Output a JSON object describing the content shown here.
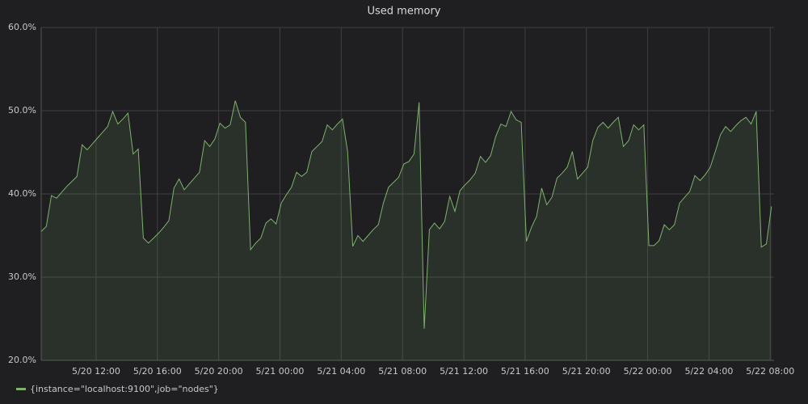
{
  "chart_data": {
    "type": "line",
    "title": "Used memory",
    "x": [
      "5/20 08:25",
      "5/20 08:45",
      "5/20 09:05",
      "5/20 09:25",
      "5/20 09:45",
      "5/20 10:05",
      "5/20 10:25",
      "5/20 10:45",
      "5/20 11:05",
      "5/20 11:25",
      "5/20 11:45",
      "5/20 12:05",
      "5/20 12:25",
      "5/20 12:45",
      "5/20 13:05",
      "5/20 13:25",
      "5/20 13:45",
      "5/20 14:05",
      "5/20 14:25",
      "5/20 14:45",
      "5/20 15:05",
      "5/20 15:25",
      "5/20 15:45",
      "5/20 16:05",
      "5/20 16:25",
      "5/20 16:45",
      "5/20 17:05",
      "5/20 17:25",
      "5/20 17:45",
      "5/20 18:05",
      "5/20 18:25",
      "5/20 18:45",
      "5/20 19:05",
      "5/20 19:25",
      "5/20 19:45",
      "5/20 20:05",
      "5/20 20:25",
      "5/20 20:45",
      "5/20 21:05",
      "5/20 21:25",
      "5/20 21:45",
      "5/20 22:05",
      "5/20 22:25",
      "5/20 22:45",
      "5/20 23:05",
      "5/20 23:25",
      "5/20 23:45",
      "5/21 00:05",
      "5/21 00:25",
      "5/21 00:45",
      "5/21 01:05",
      "5/21 01:25",
      "5/21 01:45",
      "5/21 02:05",
      "5/21 02:25",
      "5/21 02:45",
      "5/21 03:05",
      "5/21 03:25",
      "5/21 03:45",
      "5/21 04:05",
      "5/21 04:25",
      "5/21 04:45",
      "5/21 05:05",
      "5/21 05:25",
      "5/21 05:45",
      "5/21 06:05",
      "5/21 06:25",
      "5/21 06:45",
      "5/21 07:05",
      "5/21 07:25",
      "5/21 07:45",
      "5/21 08:05",
      "5/21 08:25",
      "5/21 08:45",
      "5/21 09:05",
      "5/21 09:25",
      "5/21 09:45",
      "5/21 10:05",
      "5/21 10:25",
      "5/21 10:45",
      "5/21 11:05",
      "5/21 11:25",
      "5/21 11:45",
      "5/21 12:05",
      "5/21 12:25",
      "5/21 12:45",
      "5/21 13:05",
      "5/21 13:25",
      "5/21 13:45",
      "5/21 14:05",
      "5/21 14:25",
      "5/21 14:45",
      "5/21 15:05",
      "5/21 15:25",
      "5/21 15:45",
      "5/21 16:05",
      "5/21 16:25",
      "5/21 16:45",
      "5/21 17:05",
      "5/21 17:25",
      "5/21 17:45",
      "5/21 18:05",
      "5/21 18:25",
      "5/21 18:45",
      "5/21 19:05",
      "5/21 19:25",
      "5/21 19:45",
      "5/21 20:05",
      "5/21 20:25",
      "5/21 20:45",
      "5/21 21:05",
      "5/21 21:25",
      "5/21 21:45",
      "5/21 22:05",
      "5/21 22:25",
      "5/21 22:45",
      "5/21 23:05",
      "5/21 23:25",
      "5/21 23:45",
      "5/22 00:05",
      "5/22 00:25",
      "5/22 00:45",
      "5/22 01:05",
      "5/22 01:25",
      "5/22 01:45",
      "5/22 02:05",
      "5/22 02:25",
      "5/22 02:45",
      "5/22 03:05",
      "5/22 03:25",
      "5/22 03:45",
      "5/22 04:05",
      "5/22 04:25",
      "5/22 04:45",
      "5/22 05:05",
      "5/22 05:25",
      "5/22 05:45",
      "5/22 06:05",
      "5/22 06:25",
      "5/22 06:45",
      "5/22 07:05",
      "5/22 07:25",
      "5/22 07:45",
      "5/22 08:05"
    ],
    "series": [
      {
        "name": "{instance=\"localhost:9100\",job=\"nodes\"}",
        "color": "#7eb26d",
        "values": [
          35.5,
          36.1,
          39.8,
          39.5,
          40.2,
          40.9,
          41.5,
          42.1,
          45.9,
          45.3,
          46.0,
          46.7,
          47.4,
          48.1,
          49.9,
          48.4,
          49.0,
          49.7,
          44.8,
          45.4,
          34.7,
          34.1,
          34.7,
          35.3,
          36.0,
          36.8,
          40.7,
          41.8,
          40.5,
          41.2,
          41.9,
          42.6,
          46.4,
          45.7,
          46.6,
          48.5,
          47.9,
          48.3,
          51.2,
          49.2,
          48.6,
          33.3,
          34.1,
          34.7,
          36.5,
          37.0,
          36.4,
          38.9,
          39.9,
          40.8,
          42.6,
          42.1,
          42.6,
          45.1,
          45.7,
          46.3,
          48.3,
          47.7,
          48.4,
          49.0,
          45.1,
          33.7,
          35.0,
          34.3,
          35.0,
          35.7,
          36.3,
          38.9,
          40.8,
          41.4,
          42.0,
          43.6,
          43.9,
          44.8,
          51.0,
          23.8,
          35.7,
          36.5,
          35.8,
          36.7,
          39.7,
          37.9,
          40.4,
          41.1,
          41.7,
          42.5,
          44.5,
          43.8,
          44.6,
          46.9,
          48.4,
          48.1,
          49.9,
          48.9,
          48.6,
          34.3,
          36.0,
          37.3,
          40.7,
          38.7,
          39.6,
          41.9,
          42.5,
          43.2,
          45.1,
          41.8,
          42.5,
          43.2,
          46.4,
          48.0,
          48.6,
          47.9,
          48.6,
          49.2,
          45.7,
          46.4,
          48.3,
          47.7,
          48.3,
          33.8,
          33.8,
          34.4,
          36.3,
          35.7,
          36.3,
          38.9,
          39.6,
          40.3,
          42.2,
          41.6,
          42.3,
          43.2,
          45.1,
          47.1,
          48.1,
          47.5,
          48.2,
          48.8,
          49.2,
          48.4,
          49.9,
          33.6,
          34.0,
          38.5
        ]
      }
    ],
    "xlim": [
      "5/20 08:25",
      "5/22 08:15"
    ],
    "xticks": [
      "5/20 12:00",
      "5/20 16:00",
      "5/20 20:00",
      "5/21 00:00",
      "5/21 04:00",
      "5/21 08:00",
      "5/21 12:00",
      "5/21 16:00",
      "5/21 20:00",
      "5/22 00:00",
      "5/22 04:00",
      "5/22 08:00"
    ],
    "ylim": [
      20,
      60
    ],
    "yticks": [
      {
        "value": 20,
        "label": "20.0%"
      },
      {
        "value": 30,
        "label": "30.0%"
      },
      {
        "value": 40,
        "label": "40.0%"
      },
      {
        "value": 50,
        "label": "50.0%"
      },
      {
        "value": 60,
        "label": "60.0%"
      }
    ],
    "grid": true
  }
}
